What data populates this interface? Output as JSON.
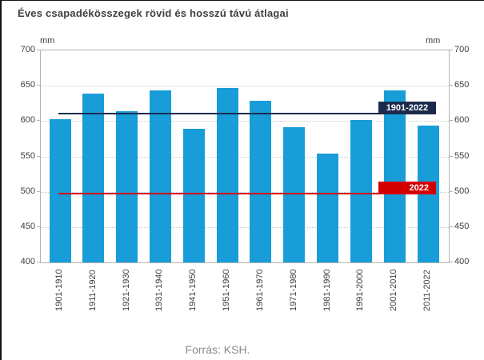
{
  "title": "Éves csapadékösszegek rövid és hosszú távú átlagai",
  "footer": "Forrás: KSH.",
  "chart_data": {
    "type": "bar",
    "title": "Éves csapadékösszegek rövid és hosszú távú átlagai",
    "unit_label_left": "mm",
    "unit_label_right": "mm",
    "categories": [
      "1901-1910",
      "1911-1920",
      "1921-1930",
      "1931-1940",
      "1941-1950",
      "1951-1960",
      "1961-1970",
      "1971-1980",
      "1981-1990",
      "1991-2000",
      "2001-2010",
      "2011-2022"
    ],
    "values": [
      603,
      639,
      614,
      643,
      589,
      647,
      629,
      591,
      554,
      601,
      643,
      594
    ],
    "reference_lines": [
      {
        "label": "1901-2022",
        "value": 611,
        "color": "#1c2b4d",
        "label_align": "center"
      },
      {
        "label": "2022",
        "value": 497,
        "color": "#d40000",
        "label_align": "right"
      }
    ],
    "ylim": [
      400,
      700
    ],
    "yticks": [
      700,
      650,
      600,
      550,
      500,
      450,
      400
    ],
    "bar_color": "#189dd9",
    "grid": true,
    "legend_position": "on-chart",
    "source": "Forrás: KSH."
  }
}
